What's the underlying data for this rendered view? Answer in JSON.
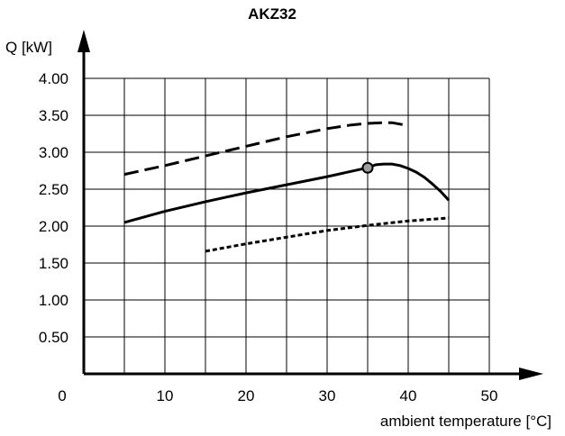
{
  "chart_data": {
    "type": "line",
    "title": "AKZ32",
    "ylabel": "Q [kW]",
    "xlabel": "ambient temperature [°C]",
    "x_ticks": [
      0,
      10,
      20,
      30,
      40,
      50
    ],
    "y_ticks": [
      "0.50",
      "1.00",
      "1.50",
      "2.00",
      "2.50",
      "3.00",
      "3.50",
      "4.00"
    ],
    "xlim": [
      0,
      50
    ],
    "ylim": [
      0,
      4.0
    ],
    "grid": true,
    "series": [
      {
        "style": "dashed",
        "points": [
          [
            5,
            2.7
          ],
          [
            10,
            2.82
          ],
          [
            15,
            2.95
          ],
          [
            20,
            3.08
          ],
          [
            25,
            3.21
          ],
          [
            30,
            3.32
          ],
          [
            33,
            3.37
          ],
          [
            35,
            3.39
          ],
          [
            37,
            3.4
          ],
          [
            38,
            3.4
          ],
          [
            39,
            3.38
          ],
          [
            40,
            3.36
          ]
        ]
      },
      {
        "style": "solid",
        "points": [
          [
            5,
            2.05
          ],
          [
            10,
            2.2
          ],
          [
            15,
            2.33
          ],
          [
            20,
            2.45
          ],
          [
            25,
            2.56
          ],
          [
            30,
            2.67
          ],
          [
            35,
            2.79
          ],
          [
            36,
            2.83
          ],
          [
            37,
            2.84
          ],
          [
            38,
            2.84
          ],
          [
            39,
            2.82
          ],
          [
            40,
            2.78
          ],
          [
            41,
            2.73
          ],
          [
            42,
            2.66
          ],
          [
            43,
            2.57
          ],
          [
            44,
            2.47
          ],
          [
            45,
            2.35
          ]
        ]
      },
      {
        "style": "dotted",
        "points": [
          [
            15,
            1.66
          ],
          [
            20,
            1.76
          ],
          [
            25,
            1.85
          ],
          [
            30,
            1.94
          ],
          [
            35,
            2.01
          ],
          [
            40,
            2.07
          ],
          [
            45,
            2.11
          ]
        ]
      }
    ],
    "markers": [
      {
        "x": 35,
        "y": 2.79,
        "shape": "circle",
        "fill": "#9e9e9e"
      }
    ],
    "colors": {
      "line": "#000000",
      "grid": "#000000",
      "marker_fill": "#9e9e9e"
    }
  }
}
